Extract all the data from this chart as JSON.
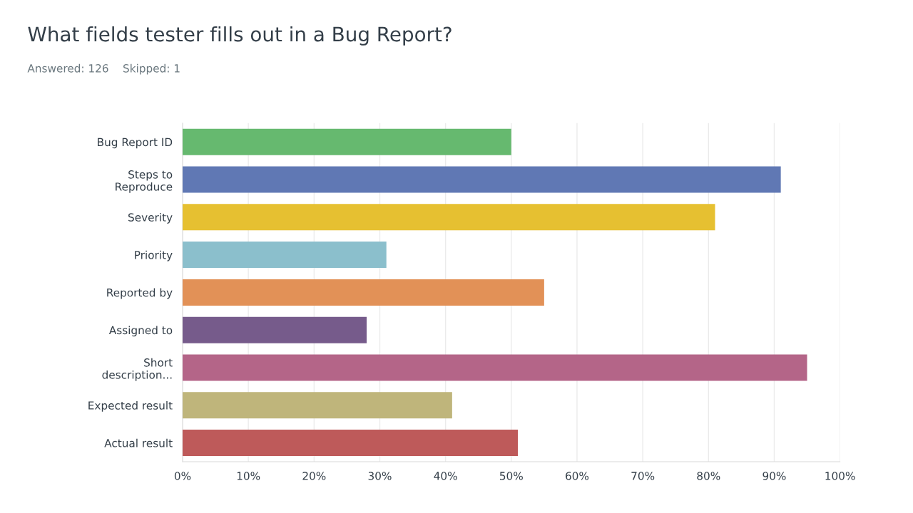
{
  "chart_data": {
    "type": "bar",
    "orientation": "horizontal",
    "title": "What fields tester fills out in a Bug Report?",
    "subtitle": "Answered: 126    Skipped: 1",
    "categories": [
      "Bug Report ID",
      "Steps to\nReproduce",
      "Severity",
      "Priority",
      "Reported by",
      "Assigned to",
      "Short\ndescription...",
      "Expected result",
      "Actual result"
    ],
    "values": [
      50,
      91,
      81,
      31,
      55,
      28,
      95,
      41,
      51
    ],
    "colors": [
      "#66b96f",
      "#6078b4",
      "#e6c031",
      "#8bbfcc",
      "#e29157",
      "#765b8b",
      "#b46588",
      "#bfb57b",
      "#be5a5a"
    ],
    "xlim": [
      0,
      100
    ],
    "xticks": [
      {
        "value": 0,
        "label": "0%"
      },
      {
        "value": 10,
        "label": "10%"
      },
      {
        "value": 20,
        "label": "20%"
      },
      {
        "value": 30,
        "label": "30%"
      },
      {
        "value": 40,
        "label": "40%"
      },
      {
        "value": 50,
        "label": "50%"
      },
      {
        "value": 60,
        "label": "60%"
      },
      {
        "value": 70,
        "label": "70%"
      },
      {
        "value": 80,
        "label": "80%"
      },
      {
        "value": 90,
        "label": "90%"
      },
      {
        "value": 100,
        "label": "100%"
      }
    ],
    "grid": "x",
    "legend": false
  }
}
